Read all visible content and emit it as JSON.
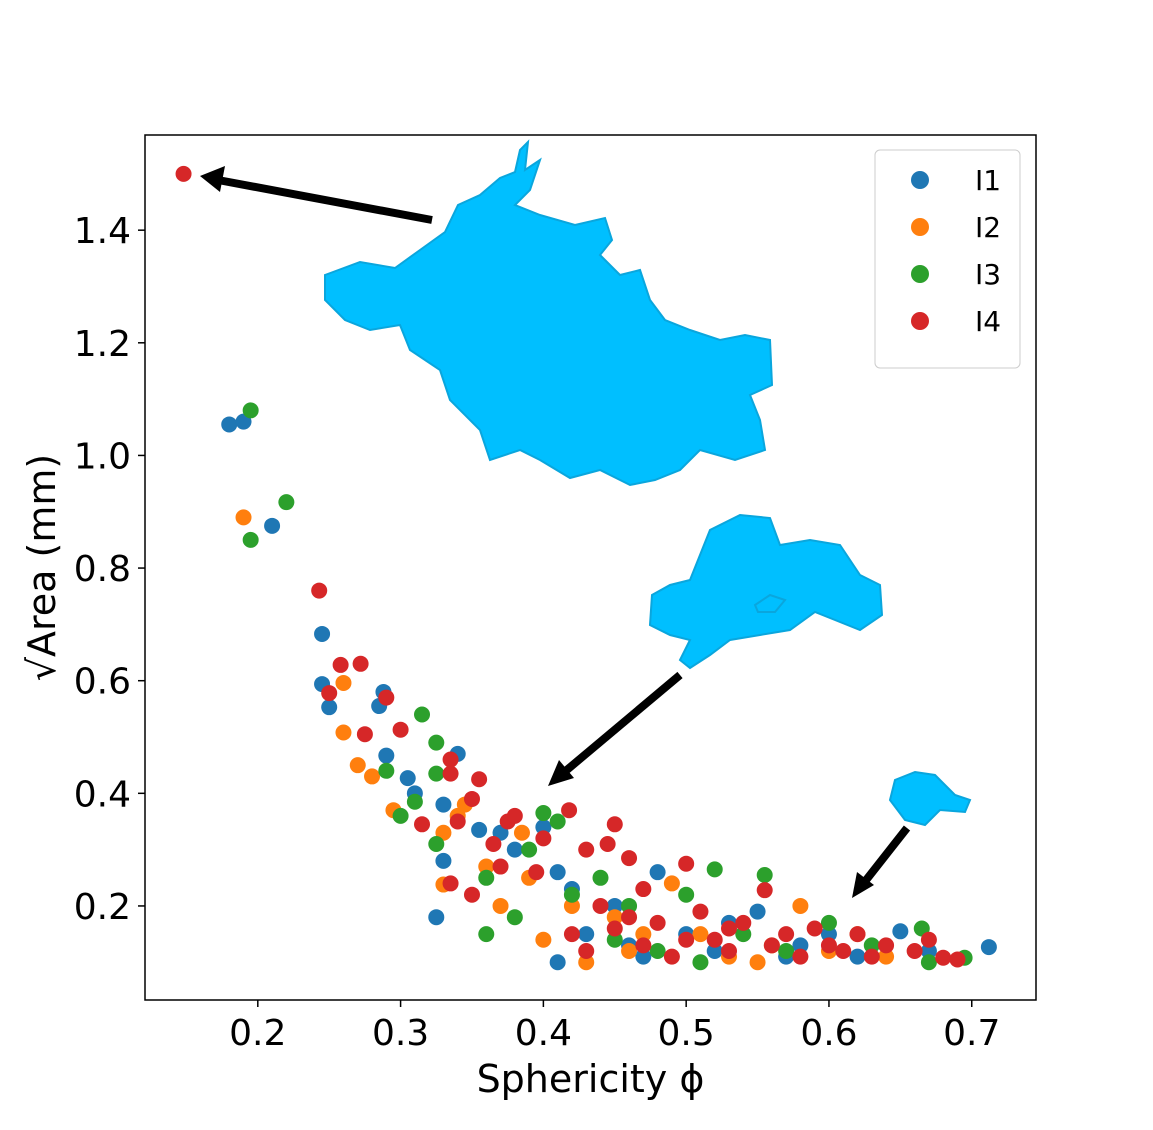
{
  "chart_data": {
    "type": "scatter",
    "x_label": "Sphericity ϕ",
    "y_label": "√Area (mm)",
    "xlim": [
      0.121,
      0.745
    ],
    "ylim": [
      0.033,
      1.569
    ],
    "xticks": [
      0.2,
      0.3,
      0.4,
      0.5,
      0.6,
      0.7
    ],
    "yticks": [
      0.2,
      0.4,
      0.6,
      0.8,
      {
        "value": 1,
        "label": "1.0"
      },
      1.2,
      1.4
    ],
    "grid": false,
    "legend": "upper right",
    "series": [
      {
        "name": "I1",
        "color": "#1f77b4",
        "x": [
          0.18,
          0.19,
          0.21,
          0.245,
          0.245,
          0.25,
          0.288,
          0.285,
          0.29,
          0.31,
          0.305,
          0.34,
          0.33,
          0.325,
          0.33,
          0.355,
          0.37,
          0.38,
          0.4,
          0.41,
          0.42,
          0.41,
          0.45,
          0.48,
          0.5,
          0.52,
          0.55,
          0.58,
          0.6,
          0.62,
          0.65,
          0.67,
          0.712,
          0.46,
          0.53,
          0.43,
          0.47,
          0.57
        ],
        "values": [
          1.055,
          1.06,
          0.875,
          0.683,
          0.594,
          0.553,
          0.58,
          0.555,
          0.467,
          0.4,
          0.427,
          0.47,
          0.38,
          0.18,
          0.28,
          0.335,
          0.33,
          0.3,
          0.34,
          0.26,
          0.23,
          0.1,
          0.2,
          0.26,
          0.15,
          0.12,
          0.19,
          0.13,
          0.15,
          0.11,
          0.155,
          0.12,
          0.127,
          0.13,
          0.17,
          0.15,
          0.11,
          0.11
        ]
      },
      {
        "name": "I2",
        "color": "#ff7f0e",
        "x": [
          0.19,
          0.26,
          0.26,
          0.27,
          0.28,
          0.295,
          0.33,
          0.33,
          0.34,
          0.345,
          0.36,
          0.37,
          0.385,
          0.39,
          0.4,
          0.42,
          0.43,
          0.45,
          0.46,
          0.49,
          0.51,
          0.53,
          0.56,
          0.58,
          0.6,
          0.62,
          0.64,
          0.55,
          0.47
        ],
        "values": [
          0.89,
          0.596,
          0.508,
          0.45,
          0.43,
          0.37,
          0.238,
          0.33,
          0.36,
          0.38,
          0.27,
          0.2,
          0.33,
          0.25,
          0.14,
          0.2,
          0.1,
          0.18,
          0.12,
          0.24,
          0.15,
          0.11,
          0.13,
          0.2,
          0.12,
          0.15,
          0.11,
          0.1,
          0.15
        ]
      },
      {
        "name": "I3",
        "color": "#2ca02c",
        "x": [
          0.195,
          0.195,
          0.22,
          0.29,
          0.3,
          0.31,
          0.315,
          0.325,
          0.325,
          0.325,
          0.36,
          0.36,
          0.38,
          0.39,
          0.4,
          0.41,
          0.42,
          0.44,
          0.46,
          0.48,
          0.5,
          0.52,
          0.54,
          0.555,
          0.57,
          0.6,
          0.63,
          0.665,
          0.67,
          0.695,
          0.51,
          0.45
        ],
        "values": [
          1.08,
          0.85,
          0.917,
          0.44,
          0.36,
          0.385,
          0.54,
          0.49,
          0.435,
          0.31,
          0.25,
          0.15,
          0.18,
          0.3,
          0.365,
          0.35,
          0.22,
          0.25,
          0.2,
          0.12,
          0.22,
          0.265,
          0.15,
          0.255,
          0.12,
          0.17,
          0.13,
          0.16,
          0.1,
          0.108,
          0.1,
          0.14
        ]
      },
      {
        "name": "I4",
        "color": "#d62728",
        "x": [
          0.148,
          0.243,
          0.258,
          0.272,
          0.25,
          0.29,
          0.3,
          0.275,
          0.335,
          0.335,
          0.315,
          0.34,
          0.35,
          0.355,
          0.335,
          0.35,
          0.365,
          0.37,
          0.375,
          0.38,
          0.395,
          0.4,
          0.418,
          0.43,
          0.445,
          0.45,
          0.46,
          0.47,
          0.44,
          0.42,
          0.43,
          0.45,
          0.47,
          0.48,
          0.49,
          0.5,
          0.51,
          0.52,
          0.53,
          0.54,
          0.555,
          0.56,
          0.57,
          0.58,
          0.59,
          0.6,
          0.61,
          0.62,
          0.63,
          0.64,
          0.66,
          0.67,
          0.68,
          0.69,
          0.5,
          0.46,
          0.53
        ],
        "values": [
          1.5,
          0.76,
          0.628,
          0.63,
          0.578,
          0.57,
          0.513,
          0.505,
          0.46,
          0.435,
          0.345,
          0.35,
          0.39,
          0.425,
          0.24,
          0.22,
          0.31,
          0.27,
          0.35,
          0.36,
          0.26,
          0.32,
          0.37,
          0.3,
          0.31,
          0.345,
          0.285,
          0.23,
          0.2,
          0.15,
          0.12,
          0.16,
          0.13,
          0.17,
          0.11,
          0.275,
          0.19,
          0.14,
          0.12,
          0.17,
          0.228,
          0.13,
          0.15,
          0.11,
          0.16,
          0.13,
          0.12,
          0.15,
          0.11,
          0.13,
          0.12,
          0.14,
          0.108,
          0.105,
          0.14,
          0.18,
          0.16
        ]
      }
    ]
  }
}
